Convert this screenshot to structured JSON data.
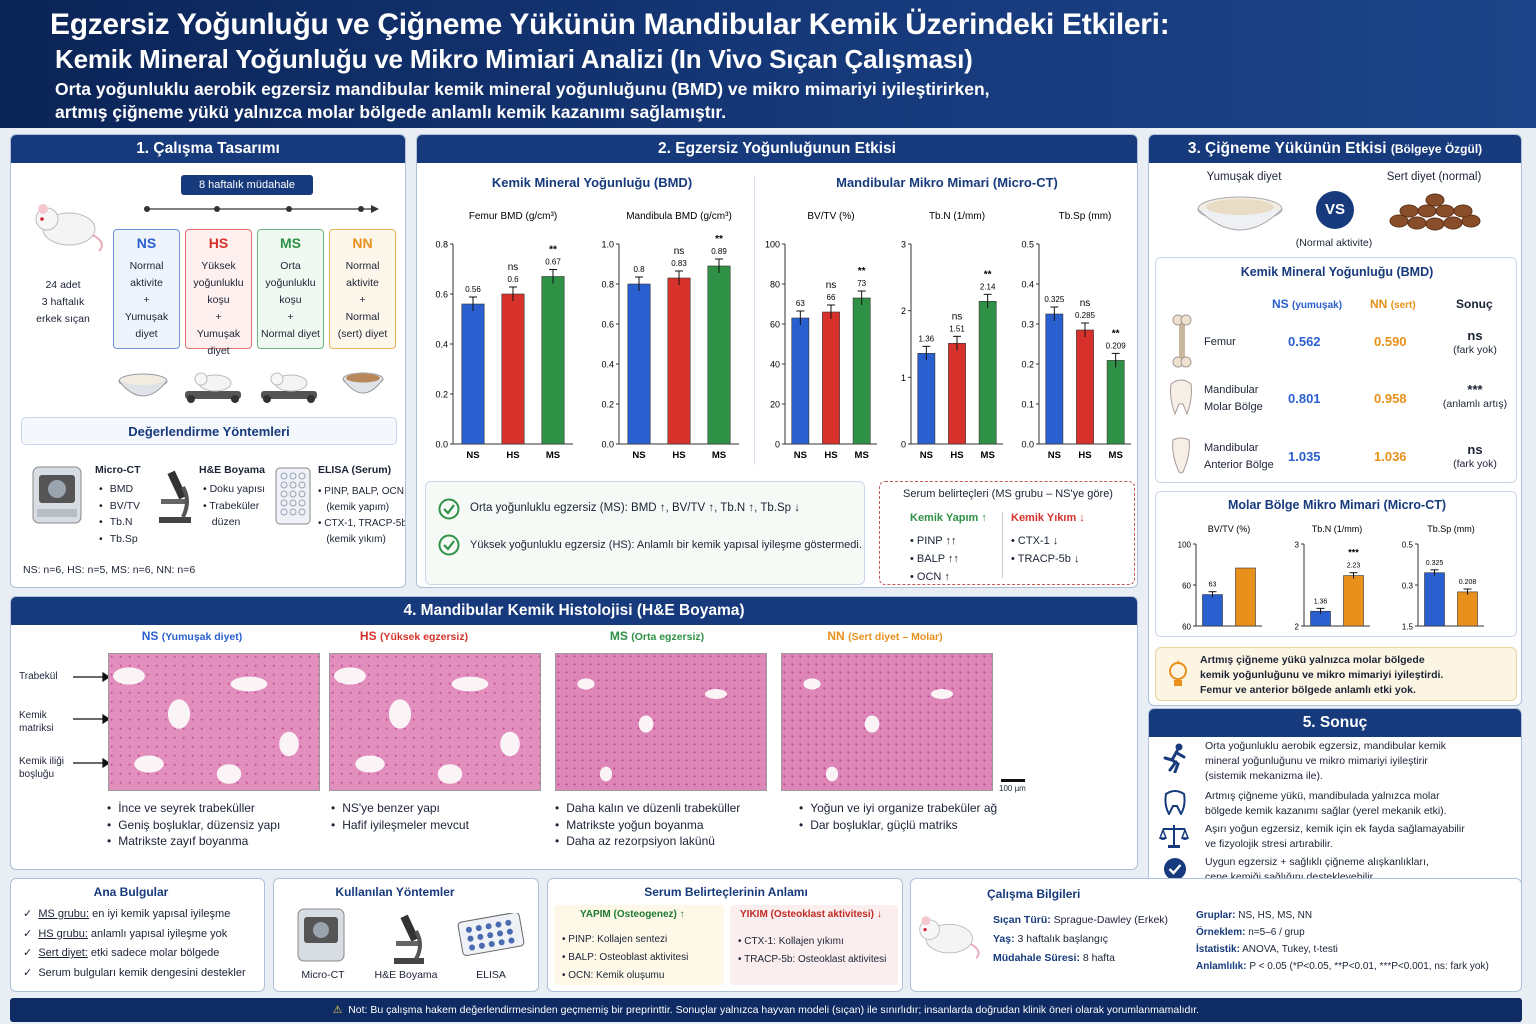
{
  "header": {
    "title": "Egzersiz Yoğunluğu ve Çiğneme Yükünün Mandibular Kemik Üzerindeki Etkileri:",
    "subtitle": "Kemik Mineral Yoğunluğu ve Mikro Mimiari Analizi (In Vivo Sıçan Çalışması)",
    "lead1": "Orta yoğunluklu aerobik egzersiz mandibular kemik mineral yoğunluğunu (BMD) ve mikro mimariyi iyileştirirken,",
    "lead2": "artmış çiğneme yükü yalnızca molar bölgede anlamlı kemik kazanımı sağlamıştır."
  },
  "colors": {
    "NS": "#2a5fd0",
    "HS": "#d6322b",
    "MS": "#2e9145",
    "NN": "#e8901b",
    "navy": "#163a7c"
  },
  "design": {
    "title": "1. Çalışma Tasarımı",
    "timeline": "8 haftalık müdahale",
    "animals": [
      "24 adet",
      "3 haftalık",
      "erkek sıçan"
    ],
    "groups": [
      {
        "code": "NS",
        "lines": [
          "Normal",
          "aktivite",
          "+",
          "Yumuşak",
          "diyet"
        ]
      },
      {
        "code": "HS",
        "lines": [
          "Yüksek",
          "yoğunluklu",
          "koşu",
          "+",
          "Yumuşak diyet"
        ]
      },
      {
        "code": "MS",
        "lines": [
          "Orta",
          "yoğunluklu",
          "koşu",
          "+",
          "Normal diyet"
        ]
      },
      {
        "code": "NN",
        "lines": [
          "Normal",
          "aktivite",
          "+",
          "Normal",
          "(sert) diyet"
        ]
      }
    ],
    "methods_title": "Değerlendirme Yöntemleri",
    "methods": [
      {
        "name": "Micro-CT",
        "items": [
          "BMD",
          "BV/TV",
          "Tb.N",
          "Tb.Sp"
        ]
      },
      {
        "name": "H&E Boyama",
        "items": [
          "Doku yapısı",
          "Trabeküler",
          "düzen"
        ]
      },
      {
        "name": "ELISA (Serum)",
        "items": [
          "PINP, BALP, OCN",
          "(kemik yapım)",
          "CTX-1, TRACP-5b",
          "(kemik yıkım)"
        ]
      }
    ],
    "n_text": "NS: n=6,  HS: n=5,  MS: n=6,  NN: n=6"
  },
  "exercise": {
    "title": "2. Egzersiz Yoğunluğunun Etkisi",
    "bmd_title": "Kemik Mineral Yoğunluğu (BMD)",
    "micro_title": "Mandibular Mikro Mimari (Micro-CT)",
    "findings": [
      "Orta yoğunluklu egzersiz (MS):  BMD ↑,  BV/TV ↑,  Tb.N ↑,  Tb.Sp ↓",
      "Yüksek yoğunluklu egzersiz (HS):  Anlamlı bir kemik yapısal iyileşme göstermedi."
    ],
    "serum": {
      "title": "Serum belirteçleri (MS grubu – NS'ye göre)",
      "formation_title": "Kemik Yapım ↑",
      "formation": [
        "PINP  ↑↑",
        "BALP  ↑↑",
        "OCN  ↑"
      ],
      "resorption_title": "Kemik Yıkım ↓",
      "resorption": [
        "CTX-1  ↓",
        "TRACP-5b ↓"
      ]
    }
  },
  "chew": {
    "title": "3. Çiğneme Yükünün Etkisi",
    "title_small": "(Bölgeye Özgül)",
    "soft": "Yumuşak diyet",
    "hard": "Sert diyet (normal)",
    "vs": "VS",
    "normal": "(Normal aktivite)",
    "bmd_title": "Kemik Mineral Yoğunluğu (BMD)",
    "cols": {
      "ns": "NS",
      "ns_sub": "(yumuşak)",
      "nn": "NN",
      "nn_sub": "(sert)",
      "res": "Sonuç"
    },
    "rows": [
      {
        "label1": "Femur",
        "label2": "",
        "ns": "0.562",
        "nn": "0.590",
        "sig": "ns",
        "note": "(fark yok)"
      },
      {
        "label1": "Mandibular",
        "label2": "Molar Bölge",
        "ns": "0.801",
        "nn": "0.958",
        "sig": "***",
        "note": "(anlamlı artış)"
      },
      {
        "label1": "Mandibular",
        "label2": "Anterior Bölge",
        "ns": "1.035",
        "nn": "1.036",
        "sig": "ns",
        "note": "(fark yok)"
      }
    ],
    "micro_title": "Molar Bölge Mikro Mimari (Micro-CT)",
    "note": [
      "Artmış çiğneme yükü yalnızca molar bölgede",
      "kemik yoğunluğunu ve mikro mimariyi iyileştirdi.",
      "Femur ve anterior bölgede anlamlı etki yok."
    ]
  },
  "histo": {
    "title": "4. Mandibular Kemik Histolojisi (H&E Boyama)",
    "labels": [
      "Trabekül",
      "Kemik",
      "matriksi",
      "Kemik iliği",
      "boşluğu"
    ],
    "scale": "100 µm",
    "cols": [
      {
        "code": "NS",
        "desc": "(Yumuşak diyet)",
        "bullets": [
          "İnce ve seyrek trabeküller",
          "Geniş boşluklar, düzensiz yapı",
          "Matrikste zayıf  boyanma"
        ]
      },
      {
        "code": "HS",
        "desc": "(Yüksek egzersiz)",
        "bullets": [
          "NS'ye benzer yapı",
          "Hafif iyileşmeler mevcut"
        ]
      },
      {
        "code": "MS",
        "desc": "(Orta egzersiz)",
        "bullets": [
          "Daha kalın ve düzenli trabeküller",
          "Matrikste yoğun boyanma",
          "Daha az rezorpsiyon lakünü"
        ]
      },
      {
        "code": "NN",
        "desc": "(Sert diyet – Molar)",
        "bullets": [
          "Yoğun ve iyi organize trabeküler ağ",
          "Dar boşluklar, güçlü matriks"
        ]
      }
    ]
  },
  "conclusion": {
    "title": "5. Sonuç",
    "items": [
      [
        "Orta yoğunluklu aerobik egzersiz, mandibular kemik",
        "mineral yoğunluğunu ve mikro mimariyi iyileştirir",
        "(sistemik mekanizma ile)."
      ],
      [
        "Artmış çiğneme yükü, mandibulada yalnızca molar",
        "bölgede kemik kazanımı sağlar (yerel mekanik etki)."
      ],
      [
        "Aşırı yoğun egzersiz, kemik için ek fayda sağlamayabilir",
        "ve fizyolojik stresi artırabilir."
      ],
      [
        "Uygun egzersiz + sağlıklı çiğneme alışkanlıkları,",
        "çene kemiği sağlığını destekleyebilir."
      ]
    ]
  },
  "bottom": {
    "findings_title": "Ana Bulgular",
    "findings": [
      [
        "MS grubu:",
        " en iyi kemik yapısal iyileşme"
      ],
      [
        "HS grubu:",
        " anlamlı yapısal iyileşme yok"
      ],
      [
        "Sert diyet:",
        " etki sadece molar bölgede"
      ],
      [
        "Serum bulguları kemik dengesini destekler",
        ""
      ]
    ],
    "methods_title": "Kullanılan Yöntemler",
    "methods": [
      "Micro-CT",
      "H&E Boyama",
      "ELISA"
    ],
    "serum_title": "Serum Belirteçlerinin Anlamı",
    "yapim_title": "YAPIM (Osteogenez) ↑",
    "yapim": [
      "PINP: Kollajen sentezi",
      "BALP: Osteoblast aktivitesi",
      "OCN: Kemik oluşumu"
    ],
    "yikim_title": "YIKIM (Osteoklast aktivitesi) ↓",
    "yikim": [
      "CTX-1: Kollajen yıkımı",
      "TRACP-5b: Osteoklast aktivitesi"
    ],
    "info_title": "Çalışma Bilgileri",
    "info_left": [
      [
        "Sıçan Türü:",
        " Sprague-Dawley (Erkek)"
      ],
      [
        "Yaş:",
        " 3 haftalık başlangıç"
      ],
      [
        "Müdahale Süresi:",
        " 8 hafta"
      ]
    ],
    "info_right": [
      [
        "Gruplar:",
        " NS, HS, MS, NN"
      ],
      [
        "Örneklem:",
        " n=5–6 / grup"
      ],
      [
        "İstatistik:",
        " ANOVA, Tukey, t-testi"
      ],
      [
        "Anlamlılık:",
        " P < 0.05 (*P<0.05, **P<0.01, ***P<0.001, ns: fark yok)"
      ]
    ]
  },
  "footer": "Not: Bu çalışma hakem değerlendirmesinden geçmemiş bir preprinttir. Sonuçlar yalnızca hayvan modeli (sıçan) ile sınırlıdır; insanlarda doğrudan klinik öneri olarak yorumlanmamalıdır.",
  "chart_data": [
    {
      "type": "bar",
      "title": "Femur BMD (g/cm³)",
      "categories": [
        "NS",
        "HS",
        "MS"
      ],
      "values": [
        0.56,
        0.6,
        0.67
      ],
      "sig": [
        "",
        "ns",
        "**"
      ],
      "ylim": [
        0,
        0.8
      ],
      "ticks": [
        "0.0",
        "0.2",
        "0.4",
        "0.6",
        "0.8"
      ]
    },
    {
      "type": "bar",
      "title": "Mandibula BMD (g/cm³)",
      "categories": [
        "NS",
        "HS",
        "MS"
      ],
      "values": [
        0.8,
        0.83,
        0.89
      ],
      "sig": [
        "",
        "ns",
        "**"
      ],
      "ylim": [
        0,
        1.0
      ],
      "ticks": [
        "0.0",
        "0.2",
        "0.4",
        "0.6",
        "0.8",
        "1.0"
      ]
    },
    {
      "type": "bar",
      "title": "BV/TV (%)",
      "categories": [
        "NS",
        "HS",
        "MS"
      ],
      "values": [
        63,
        66,
        73
      ],
      "sig": [
        "",
        "ns",
        "**"
      ],
      "ylim": [
        0,
        100
      ],
      "ticks": [
        "0",
        "20",
        "40",
        "60",
        "80",
        "100"
      ]
    },
    {
      "type": "bar",
      "title": "Tb.N (1/mm)",
      "categories": [
        "NS",
        "HS",
        "MS"
      ],
      "values": [
        1.36,
        1.51,
        2.14
      ],
      "sig": [
        "",
        "ns",
        "**"
      ],
      "ylim": [
        0,
        3
      ],
      "ticks": [
        "0",
        "1",
        "2",
        "3"
      ]
    },
    {
      "type": "bar",
      "title": "Tb.Sp (mm)",
      "categories": [
        "NS",
        "HS",
        "MS"
      ],
      "values": [
        0.325,
        0.285,
        0.209
      ],
      "sig": [
        "",
        "ns",
        "**"
      ],
      "ylim": [
        0,
        0.5
      ],
      "ticks": [
        "0.0",
        "0.1",
        "0.2",
        "0.3",
        "0.4",
        "0.5"
      ]
    },
    {
      "type": "bar",
      "title": "BV/TV (%)",
      "categories": [
        "NS",
        "NN"
      ],
      "values": [
        63,
        null
      ],
      "sig": [
        "",
        "***"
      ],
      "ylim": [
        40,
        100
      ],
      "ticks": [
        "60",
        "60",
        "100"
      ]
    },
    {
      "type": "bar",
      "title": "Tb.N (1/mm)",
      "categories": [
        "NS",
        "NN"
      ],
      "values": [
        1.36,
        2.23
      ],
      "sig": [
        "",
        "***"
      ],
      "ylim": [
        1,
        3
      ],
      "ticks": [
        "2",
        "3"
      ]
    },
    {
      "type": "bar",
      "title": "Tb.Sp (mm)",
      "categories": [
        "NS",
        "NN"
      ],
      "values": [
        0.325,
        0.208
      ],
      "sig": [
        "",
        ""
      ],
      "ylim": [
        0,
        0.5
      ],
      "ticks": [
        "1.5",
        "0.3",
        "0.5"
      ]
    }
  ]
}
